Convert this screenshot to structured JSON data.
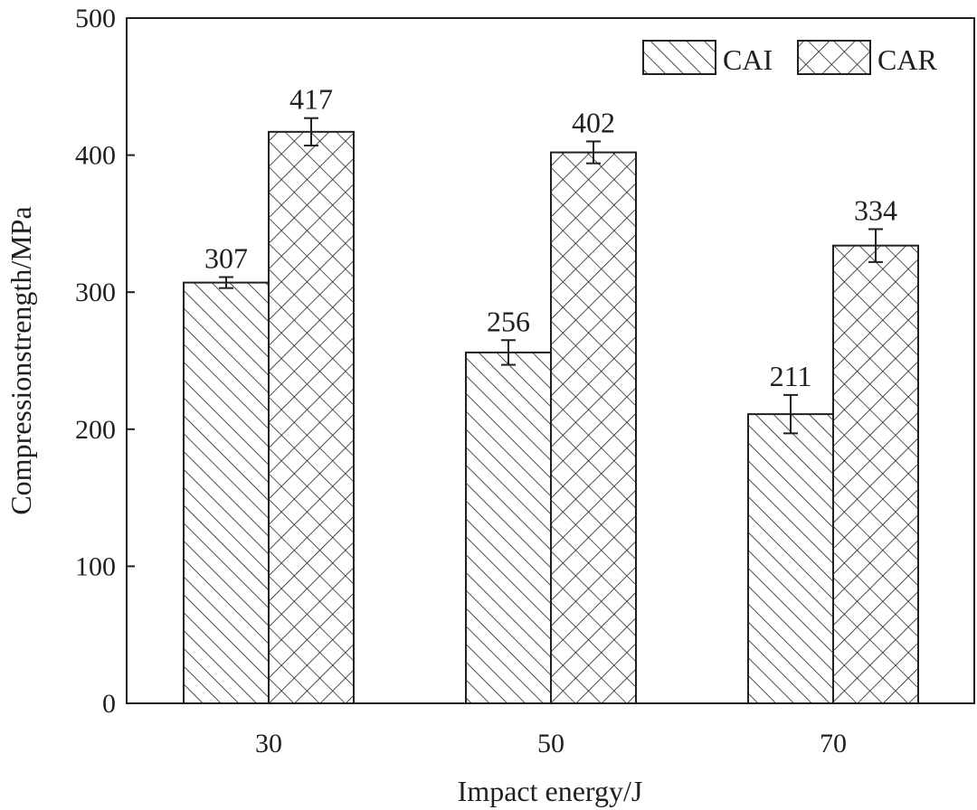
{
  "chart_data": {
    "type": "bar",
    "categories": [
      "30",
      "50",
      "70"
    ],
    "series": [
      {
        "name": "CAI",
        "pattern": "diagonal-hatch",
        "values": [
          307,
          256,
          211
        ],
        "errors": [
          4,
          9,
          14
        ],
        "labels": [
          "307",
          "256",
          "211"
        ]
      },
      {
        "name": "CAR",
        "pattern": "cross-hatch",
        "values": [
          417,
          402,
          334
        ],
        "errors": [
          10,
          8,
          12
        ],
        "labels": [
          "417",
          "402",
          "334"
        ]
      }
    ],
    "title": "",
    "xlabel": "Impact energy/J",
    "ylabel": "Compressionstrength/MPa",
    "ylim": [
      0,
      500
    ],
    "yticks": [
      0,
      100,
      200,
      300,
      400,
      500
    ],
    "ytick_labels": [
      "0",
      "100",
      "200",
      "300",
      "400",
      "500"
    ],
    "grid": false,
    "legend_position": "top-right",
    "colors": {
      "ink": "#231f20",
      "background": "#ffffff"
    }
  }
}
